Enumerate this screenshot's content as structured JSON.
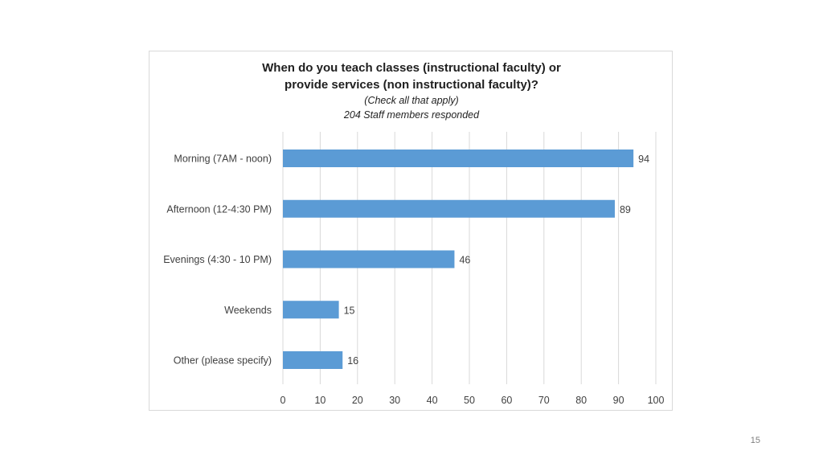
{
  "page": {
    "number": "15"
  },
  "chart_data": {
    "type": "bar",
    "orientation": "horizontal",
    "title_lines": [
      "When do you teach classes (instructional faculty) or",
      "provide services (non instructional faculty)?"
    ],
    "subtitle_lines": [
      "(Check all that apply)",
      "204 Staff members responded"
    ],
    "categories": [
      "Morning (7AM - noon)",
      "Afternoon (12-4:30 PM)",
      "Evenings (4:30 - 10 PM)",
      "Weekends",
      "Other (please specify)"
    ],
    "values": [
      94,
      89,
      46,
      15,
      16
    ],
    "xlim": [
      0,
      100
    ],
    "xticks": [
      0,
      10,
      20,
      30,
      40,
      50,
      60,
      70,
      80,
      90,
      100
    ],
    "grid": "vertical",
    "legend": "none",
    "data_labels": true,
    "bar_color": "#5b9bd5",
    "grid_color": "#d9d9d9",
    "text_color": "#404040"
  }
}
